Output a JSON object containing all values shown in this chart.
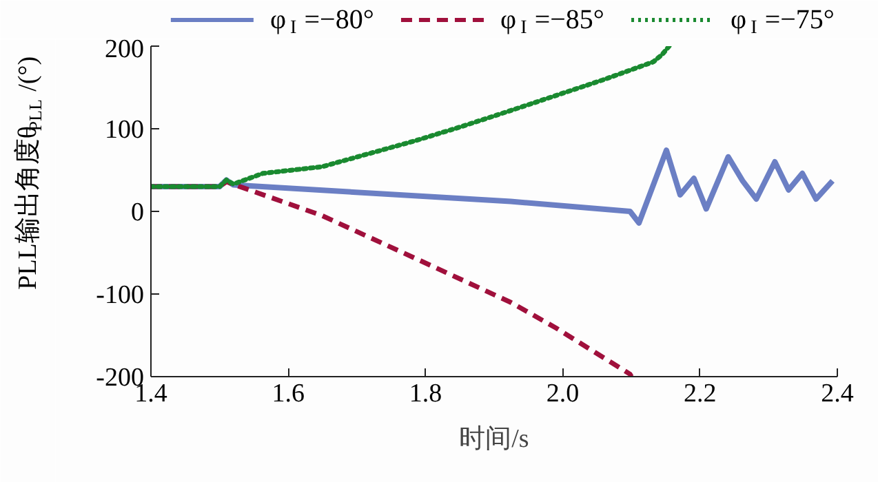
{
  "chart_data": {
    "type": "line",
    "xlabel": "时间/s",
    "ylabel": "PLL输出角度θ$_{PLL}$/(°)",
    "xlim": [
      1.4,
      2.4
    ],
    "ylim": [
      -200,
      200
    ],
    "xticks": [
      1.4,
      1.6,
      1.8,
      {
        "value": 2,
        "label": "2.0"
      },
      2.2,
      2.4
    ],
    "yticks": [
      -200,
      -100,
      0,
      100,
      200
    ],
    "grid": false,
    "legend": "top",
    "series": [
      {
        "name": "φ$_{I}$=−80°",
        "color": "#6b7fc4",
        "line_style": "solid",
        "x": [
          1.4,
          1.5,
          1.51,
          1.52,
          1.924,
          2.098,
          2.111,
          2.151,
          2.171,
          2.191,
          2.209,
          2.241,
          2.262,
          2.282,
          2.309,
          2.329,
          2.349,
          2.369,
          2.393
        ],
        "values": [
          30,
          30,
          38,
          32,
          12,
          0,
          -14,
          74,
          20,
          40,
          3,
          66,
          37,
          15,
          60,
          26,
          46,
          15,
          37
        ]
      },
      {
        "name": "φ$_{I}$=−85°",
        "color": "#a0103c",
        "line_style": "dashed",
        "x": [
          1.4,
          1.5,
          1.51,
          1.516,
          1.649,
          1.783,
          1.924,
          1.99,
          2.098,
          2.1
        ],
        "values": [
          30,
          30,
          36,
          34,
          -5,
          -56,
          -110,
          -141,
          -197,
          -200
        ]
      },
      {
        "name": "φ$_{I}$=−75°",
        "color": "#1a8a30",
        "line_style": "dotted",
        "x": [
          1.4,
          1.5,
          1.51,
          1.52,
          1.563,
          1.649,
          1.783,
          1.85,
          1.924,
          2.058,
          2.132,
          2.145,
          2.155
        ],
        "values": [
          30,
          30,
          38,
          33,
          46,
          54,
          85,
          102,
          122,
          159,
          181,
          190,
          200
        ]
      }
    ]
  }
}
